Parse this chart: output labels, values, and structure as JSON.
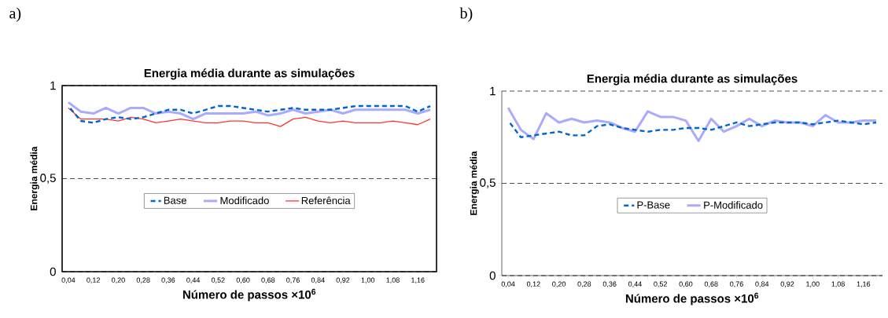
{
  "chart_data": [
    {
      "type": "line",
      "title": "Energia média durante as simulações",
      "xlabel": "Número de passos ×10$^{6}$",
      "ylabel": "Energia média",
      "categories": [
        "0,04",
        null,
        "0,12",
        null,
        "0,20",
        null,
        "0,28",
        null,
        "0,36",
        null,
        "0,44",
        null,
        "0,52",
        null,
        "0,60",
        null,
        "0,68",
        null,
        "0,76",
        null,
        "0,84",
        null,
        "0,92",
        null,
        "1,00",
        null,
        "1,08",
        null,
        "1,16",
        null
      ],
      "ylim": [
        0,
        1
      ],
      "yticks": [
        0,
        {
          "value": 0.5,
          "label": "0,5"
        },
        1
      ],
      "grid": "y",
      "legend": "center",
      "annotations": [
        "a)"
      ],
      "series": [
        {
          "name": "Base",
          "color": "#0066cc",
          "line_style": "dashed",
          "values": [
            0.89,
            0.81,
            0.8,
            0.82,
            0.83,
            0.82,
            0.83,
            0.85,
            0.87,
            0.87,
            0.85,
            0.87,
            0.89,
            0.89,
            0.88,
            0.87,
            0.86,
            0.87,
            0.88,
            0.87,
            0.87,
            0.87,
            0.88,
            0.89,
            0.89,
            0.89,
            0.89,
            0.89,
            0.86,
            0.89
          ]
        },
        {
          "name": "Modificado",
          "color": "#aaaaff",
          "line_style": "solid",
          "values": [
            0.91,
            0.86,
            0.85,
            0.88,
            0.85,
            0.88,
            0.88,
            0.85,
            0.86,
            0.85,
            0.82,
            0.85,
            0.85,
            0.85,
            0.85,
            0.86,
            0.84,
            0.85,
            0.87,
            0.85,
            0.86,
            0.87,
            0.85,
            0.87,
            0.87,
            0.87,
            0.87,
            0.87,
            0.85,
            0.87
          ]
        },
        {
          "name": "Referência",
          "color": "#ff3333",
          "line_style": "solid",
          "values": [
            0.88,
            0.82,
            0.82,
            0.82,
            0.81,
            0.83,
            0.82,
            0.8,
            0.81,
            0.82,
            0.81,
            0.8,
            0.8,
            0.81,
            0.81,
            0.8,
            0.8,
            0.78,
            0.82,
            0.83,
            0.81,
            0.8,
            0.81,
            0.8,
            0.8,
            0.8,
            0.81,
            0.8,
            0.79,
            0.82
          ]
        }
      ]
    },
    {
      "type": "line",
      "title": "Energia média durante as simulações",
      "xlabel": "Número de passos ×10$^{6}$",
      "ylabel": "Energia média",
      "categories": [
        "0,04",
        null,
        "0,12",
        null,
        "0,20",
        null,
        "0,28",
        null,
        "0,36",
        null,
        "0,44",
        null,
        "0,52",
        null,
        "0,60",
        null,
        "0,68",
        null,
        "0,76",
        null,
        "0,84",
        null,
        "0,92",
        null,
        "1,00",
        null,
        "1,08",
        null,
        "1,16",
        null
      ],
      "ylim": [
        0,
        1
      ],
      "yticks": [
        0,
        {
          "value": 0.5,
          "label": "0,5"
        },
        1
      ],
      "grid": "y",
      "legend": "center",
      "annotations": [
        "b)"
      ],
      "series": [
        {
          "name": "P-Base",
          "color": "#0066cc",
          "line_style": "dashed",
          "values": [
            0.84,
            0.75,
            0.76,
            0.77,
            0.78,
            0.76,
            0.76,
            0.81,
            0.82,
            0.8,
            0.79,
            0.78,
            0.79,
            0.79,
            0.8,
            0.8,
            0.79,
            0.81,
            0.83,
            0.81,
            0.82,
            0.83,
            0.83,
            0.83,
            0.82,
            0.83,
            0.84,
            0.83,
            0.82,
            0.83
          ]
        },
        {
          "name": "P-Modificado",
          "color": "#aaaaff",
          "line_style": "solid",
          "values": [
            0.91,
            0.79,
            0.74,
            0.88,
            0.83,
            0.85,
            0.83,
            0.84,
            0.83,
            0.8,
            0.78,
            0.89,
            0.86,
            0.86,
            0.84,
            0.73,
            0.85,
            0.78,
            0.81,
            0.85,
            0.81,
            0.84,
            0.83,
            0.83,
            0.81,
            0.87,
            0.83,
            0.83,
            0.84,
            0.84
          ]
        }
      ]
    }
  ]
}
